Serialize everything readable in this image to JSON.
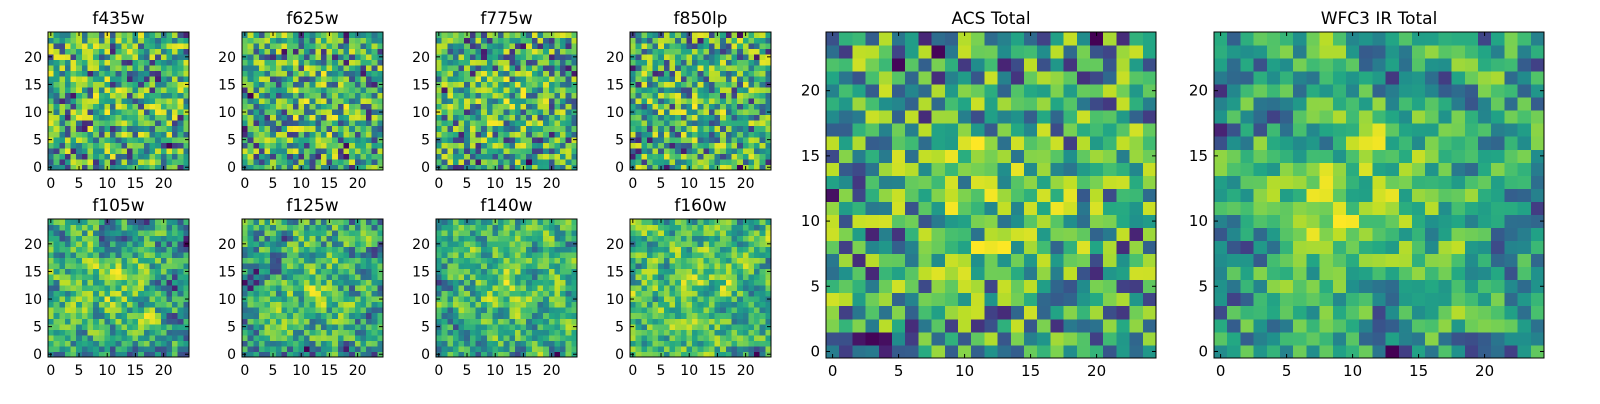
{
  "figure_title": "",
  "chart_data": [
    {
      "type": "heatmap",
      "title": "f435w",
      "colormap": "viridis",
      "shape": [
        25,
        25
      ],
      "xlim": [
        -0.5,
        24.5
      ],
      "ylim": [
        -0.5,
        24.5
      ],
      "xticks": [
        "0",
        "5",
        "10",
        "15",
        "20"
      ],
      "yticks": [
        "0",
        "5",
        "10",
        "15",
        "20"
      ],
      "seed": 11,
      "smooth": 0,
      "center_peak": 0.05
    },
    {
      "type": "heatmap",
      "title": "f625w",
      "colormap": "viridis",
      "shape": [
        25,
        25
      ],
      "xlim": [
        -0.5,
        24.5
      ],
      "ylim": [
        -0.5,
        24.5
      ],
      "xticks": [
        "0",
        "5",
        "10",
        "15",
        "20"
      ],
      "yticks": [
        "0",
        "5",
        "10",
        "15",
        "20"
      ],
      "seed": 23,
      "smooth": 0,
      "center_peak": 0.12
    },
    {
      "type": "heatmap",
      "title": "f775w",
      "colormap": "viridis",
      "shape": [
        25,
        25
      ],
      "xlim": [
        -0.5,
        24.5
      ],
      "ylim": [
        -0.5,
        24.5
      ],
      "xticks": [
        "0",
        "5",
        "10",
        "15",
        "20"
      ],
      "yticks": [
        "0",
        "5",
        "10",
        "15",
        "20"
      ],
      "seed": 37,
      "smooth": 0,
      "center_peak": 0.12
    },
    {
      "type": "heatmap",
      "title": "f850lp",
      "colormap": "viridis",
      "shape": [
        25,
        25
      ],
      "xlim": [
        -0.5,
        24.5
      ],
      "ylim": [
        -0.5,
        24.5
      ],
      "xticks": [
        "0",
        "5",
        "10",
        "15",
        "20"
      ],
      "yticks": [
        "0",
        "5",
        "10",
        "15",
        "20"
      ],
      "seed": 41,
      "smooth": 0,
      "center_peak": 0.08
    },
    {
      "type": "heatmap",
      "title": "f105w",
      "colormap": "viridis",
      "shape": [
        25,
        25
      ],
      "xlim": [
        -0.5,
        24.5
      ],
      "ylim": [
        -0.5,
        24.5
      ],
      "xticks": [
        "0",
        "5",
        "10",
        "15",
        "20"
      ],
      "yticks": [
        "0",
        "5",
        "10",
        "15",
        "20"
      ],
      "seed": 53,
      "smooth": 1,
      "center_peak": 0.15
    },
    {
      "type": "heatmap",
      "title": "f125w",
      "colormap": "viridis",
      "shape": [
        25,
        25
      ],
      "xlim": [
        -0.5,
        24.5
      ],
      "ylim": [
        -0.5,
        24.5
      ],
      "xticks": [
        "0",
        "5",
        "10",
        "15",
        "20"
      ],
      "yticks": [
        "0",
        "5",
        "10",
        "15",
        "20"
      ],
      "seed": 67,
      "smooth": 1,
      "center_peak": 0.15
    },
    {
      "type": "heatmap",
      "title": "f140w",
      "colormap": "viridis",
      "shape": [
        25,
        25
      ],
      "xlim": [
        -0.5,
        24.5
      ],
      "ylim": [
        -0.5,
        24.5
      ],
      "xticks": [
        "0",
        "5",
        "10",
        "15",
        "20"
      ],
      "yticks": [
        "0",
        "5",
        "10",
        "15",
        "20"
      ],
      "seed": 79,
      "smooth": 1,
      "center_peak": 0.18
    },
    {
      "type": "heatmap",
      "title": "f160w",
      "colormap": "viridis",
      "shape": [
        25,
        25
      ],
      "xlim": [
        -0.5,
        24.5
      ],
      "ylim": [
        -0.5,
        24.5
      ],
      "xticks": [
        "0",
        "5",
        "10",
        "15",
        "20"
      ],
      "yticks": [
        "0",
        "5",
        "10",
        "15",
        "20"
      ],
      "seed": 83,
      "smooth": 1,
      "center_peak": 0.18
    },
    {
      "type": "heatmap",
      "title": "ACS Total",
      "colormap": "viridis",
      "shape": [
        25,
        25
      ],
      "xlim": [
        -0.5,
        24.5
      ],
      "ylim": [
        -0.5,
        24.5
      ],
      "xticks": [
        "0",
        "5",
        "10",
        "15",
        "20"
      ],
      "yticks": [
        "0",
        "5",
        "10",
        "15",
        "20"
      ],
      "seed": 97,
      "smooth": 0,
      "center_peak": 0.2
    },
    {
      "type": "heatmap",
      "title": "WFC3 IR Total",
      "colormap": "viridis",
      "shape": [
        25,
        25
      ],
      "xlim": [
        -0.5,
        24.5
      ],
      "ylim": [
        -0.5,
        24.5
      ],
      "xticks": [
        "0",
        "5",
        "10",
        "15",
        "20"
      ],
      "yticks": [
        "0",
        "5",
        "10",
        "15",
        "20"
      ],
      "seed": 101,
      "smooth": 1,
      "center_peak": 0.3
    }
  ]
}
